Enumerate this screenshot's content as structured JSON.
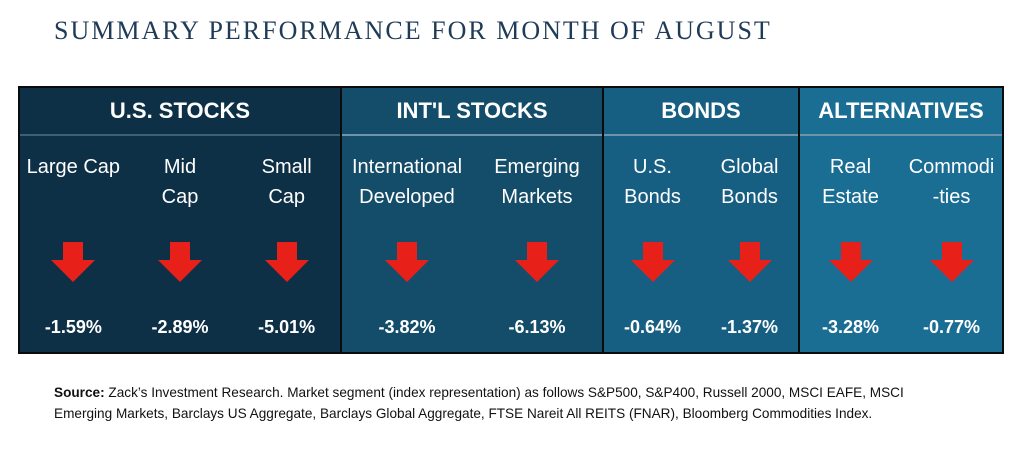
{
  "title": "SUMMARY PERFORMANCE FOR MONTH OF AUGUST",
  "sections": [
    {
      "header": "U.S. STOCKS",
      "items": [
        {
          "label_line1": "Large Cap",
          "label_line2": "",
          "value": "-1.59%"
        },
        {
          "label_line1": "Mid",
          "label_line2": "Cap",
          "value": "-2.89%"
        },
        {
          "label_line1": "Small",
          "label_line2": "Cap",
          "value": "-5.01%"
        }
      ]
    },
    {
      "header": "INT'L STOCKS",
      "items": [
        {
          "label_line1": "International",
          "label_line2": "Developed",
          "value": "-3.82%"
        },
        {
          "label_line1": "Emerging",
          "label_line2": "Markets",
          "value": "-6.13%"
        }
      ]
    },
    {
      "header": "BONDS",
      "items": [
        {
          "label_line1": "U.S.",
          "label_line2": "Bonds",
          "value": "-0.64%"
        },
        {
          "label_line1": "Global",
          "label_line2": "Bonds",
          "value": "-1.37%"
        }
      ]
    },
    {
      "header": "ALTERNATIVES",
      "items": [
        {
          "label_line1": "Real",
          "label_line2": "Estate",
          "value": "-3.28%"
        },
        {
          "label_line1": "Commodi",
          "label_line2": "-ties",
          "value": "-0.77%"
        }
      ]
    }
  ],
  "arrow_icon": "down-arrow-icon",
  "colors": {
    "arrow": "#e8201a",
    "us_stocks": "#0d3046",
    "intl_stocks": "#134d6a",
    "bonds": "#175f82",
    "alternatives": "#1a6d93",
    "title": "#1f3b57"
  },
  "source": {
    "label": "Source:",
    "text": "Zack’s Investment Research. Market segment (index representation) as follows S&P500, S&P400, Russell 2000, MSCI EAFE, MSCI Emerging Markets, Barclays US Aggregate, Barclays Global Aggregate, FTSE Nareit All REITS (FNAR), Bloomberg Commodities Index."
  }
}
